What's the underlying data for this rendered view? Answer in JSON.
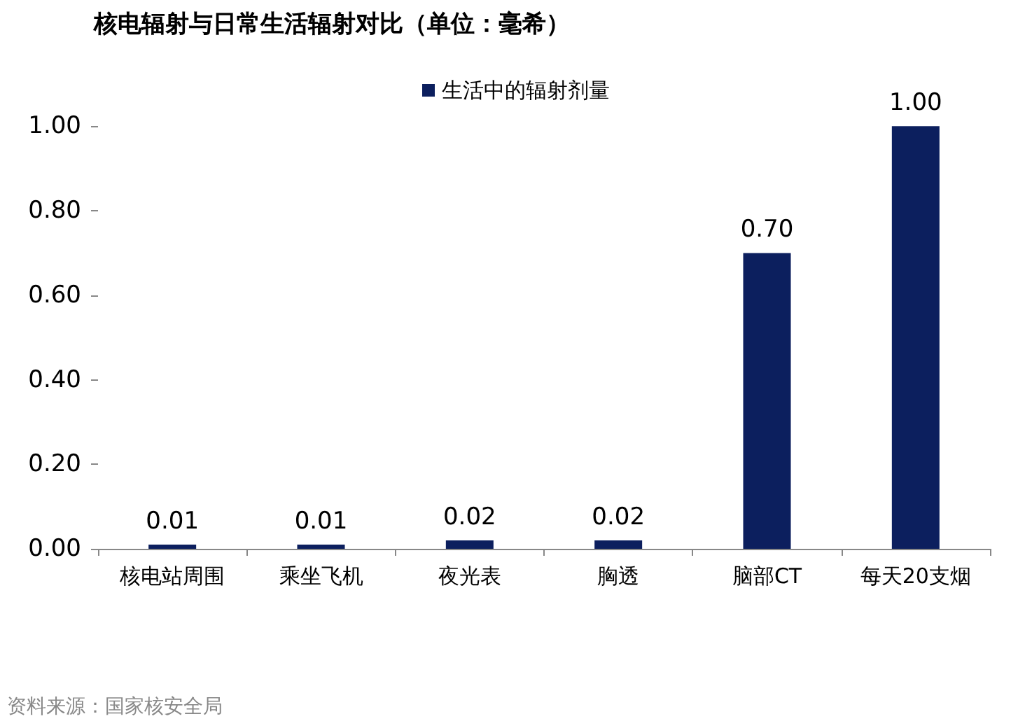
{
  "chart_data": {
    "type": "bar",
    "title": "核电辐射与日常生活辐射对比（单位：毫希）",
    "categories": [
      "核电站周围",
      "乘坐飞机",
      "夜光表",
      "胸透",
      "脑部CT",
      "每天20支烟"
    ],
    "series": [
      {
        "name": "生活中的辐射剂量",
        "color": "#0c1f5e",
        "values": [
          0.01,
          0.01,
          0.02,
          0.02,
          0.7,
          1
        ],
        "value_labels": [
          "0.01",
          "0.01",
          "0.02",
          "0.02",
          "0.70",
          "1.00"
        ]
      }
    ],
    "ylim": [
      0,
      1.1
    ],
    "yticks": [
      {
        "value": 0,
        "label": "0.00"
      },
      {
        "value": 0.2,
        "label": "0.20"
      },
      {
        "value": 0.4,
        "label": "0.40"
      },
      {
        "value": 0.6,
        "label": "0.60"
      },
      {
        "value": 0.8,
        "label": "0.80"
      },
      {
        "value": 1,
        "label": "1.00"
      }
    ],
    "grid": false,
    "legend": "top",
    "annotations": [
      "资料来源：国家核安全局"
    ]
  }
}
